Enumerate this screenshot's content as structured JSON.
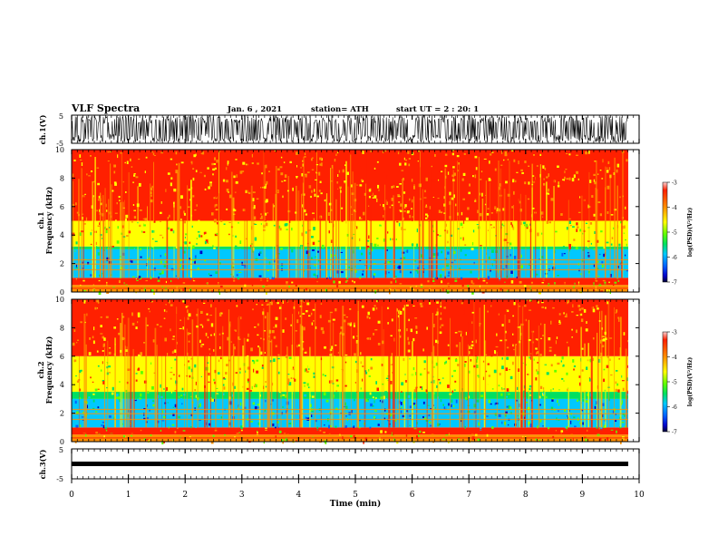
{
  "header": {
    "title": "VLF Spectra",
    "date": "Jan. 6 , 2021",
    "station": "station= ATH",
    "start": "start  UT =  2 : 20: 1"
  },
  "chart_data": [
    {
      "type": "line",
      "panel": "ch1-waveform",
      "ylabel": "ch.1(V)",
      "ylim": [
        -5,
        5
      ],
      "yticks": [
        "5",
        "-5"
      ],
      "xlim": [
        0,
        10
      ],
      "description_note": "dense noisy waveform spanning nearly full range"
    },
    {
      "type": "heatmap",
      "panel": "ch1-spectrogram",
      "ylabel": "Frequency (kHz)",
      "channel_label": "ch.1",
      "ylim": [
        0,
        10
      ],
      "yticks": [
        "0",
        "2",
        "4",
        "6",
        "8",
        "10"
      ],
      "xlim": [
        0,
        10
      ],
      "colorbar": {
        "label": "log(PSD)(V²/Hz)",
        "ticks": [
          "-3",
          "-4",
          "-5",
          "-6",
          "-7"
        ],
        "range": [
          -7,
          -3
        ]
      },
      "bands_kHz_approx": {
        "high_power": [
          5,
          10
        ],
        "mid_power": [
          3,
          5
        ],
        "low_power": [
          1,
          3
        ]
      }
    },
    {
      "type": "heatmap",
      "panel": "ch2-spectrogram",
      "ylabel": "Frequency (kHz)",
      "channel_label": "ch.2",
      "ylim": [
        0,
        10
      ],
      "yticks": [
        "0",
        "2",
        "4",
        "6",
        "8",
        "10"
      ],
      "xlim": [
        0,
        10
      ],
      "colorbar": {
        "label": "log(PSD)(V²/Hz)",
        "ticks": [
          "-3",
          "-4",
          "-5",
          "-6",
          "-7"
        ],
        "range": [
          -7,
          -3
        ]
      },
      "bands_kHz_approx": {
        "high_power": [
          6,
          10
        ],
        "mid_power": [
          3,
          6
        ],
        "low_power": [
          1,
          3
        ]
      }
    },
    {
      "type": "line",
      "panel": "ch3-waveform",
      "ylabel": "ch.3(V)",
      "ylim": [
        -5,
        5
      ],
      "yticks": [
        "5",
        "-5"
      ],
      "xlim": [
        0,
        10
      ],
      "level_V": -1
    }
  ],
  "x_axis": {
    "label": "Time  (min)",
    "ticks": [
      "0",
      "1",
      "2",
      "3",
      "4",
      "5",
      "6",
      "7",
      "8",
      "9",
      "10"
    ]
  },
  "colors": {
    "colormap": [
      "#0000c8",
      "#0060ff",
      "#00c8ff",
      "#00e060",
      "#60ff00",
      "#ffff00",
      "#ff9000",
      "#ff2000"
    ]
  }
}
